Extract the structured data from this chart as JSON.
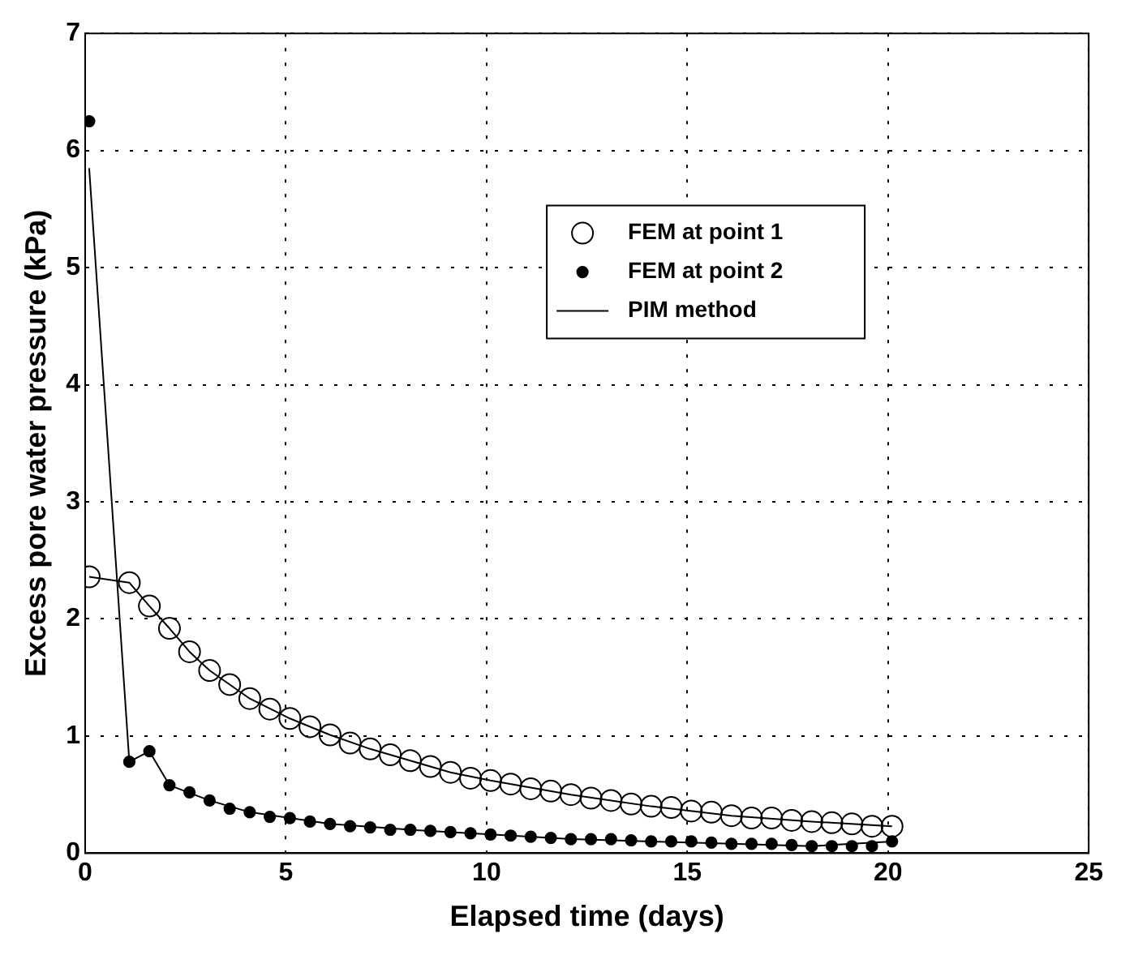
{
  "chart_data": {
    "type": "scatter",
    "xlabel": "Elapsed time (days)",
    "ylabel": "Excess pore water pressure (kPa)",
    "xlim": [
      0,
      25
    ],
    "ylim": [
      0,
      7
    ],
    "xticks": [
      0,
      5,
      10,
      15,
      20,
      25
    ],
    "yticks": [
      0,
      1,
      2,
      3,
      4,
      5,
      6,
      7
    ],
    "grid": true,
    "legend": "top right",
    "series": [
      {
        "name": "FEM at point 1",
        "marker": "circle",
        "color": "#000000",
        "x": [
          0.1,
          1.1,
          1.6,
          2.1,
          2.6,
          3.1,
          3.6,
          4.1,
          4.6,
          5.1,
          5.6,
          6.1,
          6.6,
          7.1,
          7.6,
          8.1,
          8.6,
          9.1,
          9.6,
          10.1,
          10.6,
          11.1,
          11.6,
          12.1,
          12.6,
          13.1,
          13.6,
          14.1,
          14.6,
          15.1,
          15.6,
          16.1,
          16.6,
          17.1,
          17.6,
          18.1,
          18.6,
          19.1,
          19.6,
          20.1
        ],
        "values": [
          2.36,
          2.31,
          2.11,
          1.92,
          1.72,
          1.56,
          1.44,
          1.32,
          1.23,
          1.15,
          1.08,
          1.01,
          0.94,
          0.89,
          0.84,
          0.79,
          0.74,
          0.69,
          0.64,
          0.62,
          0.59,
          0.55,
          0.53,
          0.5,
          0.47,
          0.45,
          0.42,
          0.4,
          0.39,
          0.36,
          0.35,
          0.32,
          0.3,
          0.3,
          0.28,
          0.27,
          0.26,
          0.25,
          0.23,
          0.23
        ]
      },
      {
        "name": "FEM at point 2",
        "marker": "circle",
        "color": "#000000",
        "x": [
          0.1,
          1.1,
          1.6,
          2.1,
          2.6,
          3.1,
          3.6,
          4.1,
          4.6,
          5.1,
          5.6,
          6.1,
          6.6,
          7.1,
          7.6,
          8.1,
          8.6,
          9.1,
          9.6,
          10.1,
          10.6,
          11.1,
          11.6,
          12.1,
          12.6,
          13.1,
          13.6,
          14.1,
          14.6,
          15.1,
          15.6,
          16.1,
          16.6,
          17.1,
          17.6,
          18.1,
          18.6,
          19.1,
          19.6,
          20.1
        ],
        "values": [
          6.25,
          0.78,
          0.87,
          0.58,
          0.52,
          0.45,
          0.38,
          0.35,
          0.31,
          0.3,
          0.27,
          0.25,
          0.23,
          0.22,
          0.2,
          0.2,
          0.19,
          0.18,
          0.17,
          0.16,
          0.15,
          0.14,
          0.13,
          0.12,
          0.12,
          0.12,
          0.11,
          0.1,
          0.1,
          0.1,
          0.09,
          0.08,
          0.08,
          0.08,
          0.07,
          0.06,
          0.06,
          0.06,
          0.06,
          0.1
        ]
      },
      {
        "name": "PIM method",
        "type": "line",
        "marker": "none",
        "color": "#000000",
        "x": [
          0.1,
          1.1,
          1.6,
          2.1,
          3.1,
          4.1,
          5.1,
          6.1,
          8.1,
          10.1,
          12.1,
          14.1,
          16.1,
          18.1,
          20.1
        ],
        "values": [
          5.85,
          0.78,
          0.87,
          0.58,
          0.45,
          0.35,
          0.3,
          0.25,
          0.2,
          0.16,
          0.12,
          0.1,
          0.08,
          0.06,
          0.1
        ]
      },
      {
        "type": "line",
        "marker": "none",
        "color": "#000000",
        "x": [
          0.1,
          1.1,
          1.6,
          2.1,
          2.6,
          3.1,
          4.1,
          5.1,
          6.1,
          7.1,
          8.1,
          9.1,
          10.1,
          12.1,
          14.1,
          16.1,
          18.1,
          20.1
        ],
        "values": [
          2.36,
          2.31,
          2.11,
          1.92,
          1.72,
          1.56,
          1.32,
          1.15,
          1.01,
          0.89,
          0.79,
          0.69,
          0.62,
          0.5,
          0.4,
          0.32,
          0.27,
          0.23
        ]
      }
    ]
  }
}
